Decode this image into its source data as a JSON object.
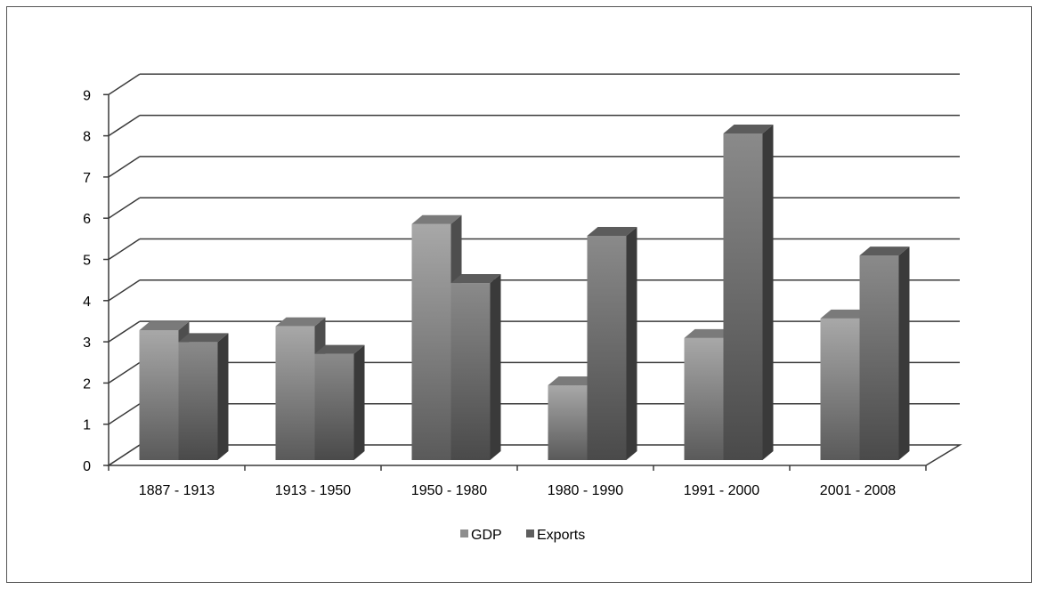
{
  "chart_data": {
    "type": "bar",
    "style": "3d-clustered-column",
    "categories": [
      "1887 - 1913",
      "1913 - 1950",
      "1950 - 1980",
      "1980 - 1990",
      "1991 - 2000",
      "2001 - 2008"
    ],
    "series": [
      {
        "name": "GDP",
        "values": [
          3.3,
          3.4,
          6.0,
          1.9,
          3.1,
          3.6
        ]
      },
      {
        "name": "Exports",
        "values": [
          3.0,
          2.7,
          4.5,
          5.7,
          8.3,
          5.2
        ]
      }
    ],
    "ylim": [
      0,
      9
    ],
    "yticks": [
      "0",
      "1",
      "2",
      "3",
      "4",
      "5",
      "6",
      "7",
      "8",
      "9"
    ],
    "grid": true,
    "legend_position": "bottom",
    "colors": {
      "gdp": "#9a9a9a",
      "exports": "#6a6a6a",
      "grid": "#3a3a3a"
    }
  }
}
